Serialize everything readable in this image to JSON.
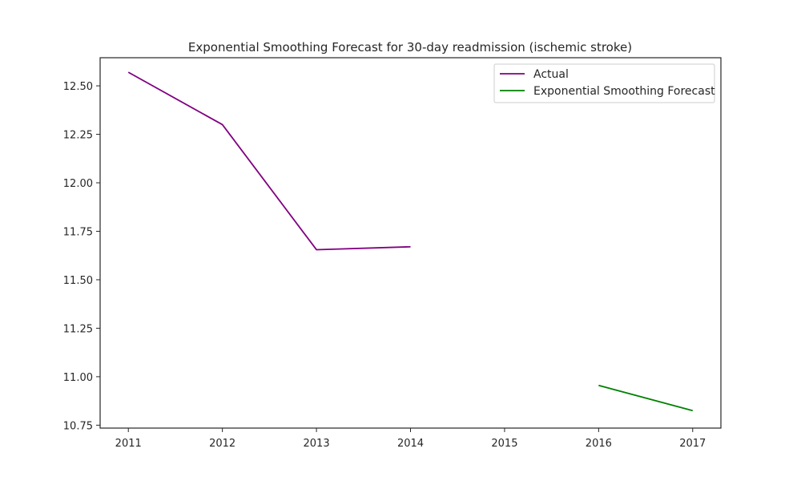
{
  "chart_data": {
    "type": "line",
    "title": "Exponential Smoothing Forecast for 30-day readmission (ischemic stroke)",
    "xlabel": "",
    "ylabel": "",
    "xlim": [
      2010.7,
      2017.3
    ],
    "ylim": [
      10.735,
      12.645
    ],
    "x_ticks": [
      2011,
      2012,
      2013,
      2014,
      2015,
      2016,
      2017
    ],
    "y_ticks": [
      10.75,
      11.0,
      11.25,
      11.5,
      11.75,
      12.0,
      12.25,
      12.5
    ],
    "grid": false,
    "legend_position": "top-right",
    "series": [
      {
        "name": "Actual",
        "color": "#800080",
        "x": [
          2011,
          2012,
          2013,
          2014
        ],
        "y": [
          12.57,
          12.3,
          11.655,
          11.67
        ]
      },
      {
        "name": "Exponential Smoothing Forecast",
        "color": "#008000",
        "x": [
          2016,
          2017
        ],
        "y": [
          10.955,
          10.825
        ]
      }
    ]
  }
}
